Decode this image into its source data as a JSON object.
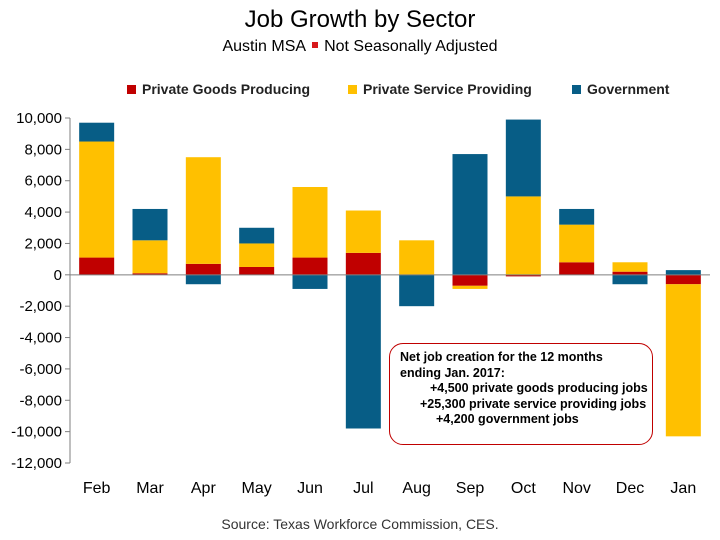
{
  "header": {
    "title": "Job Growth by Sector",
    "subtitle_left": "Austin MSA",
    "subtitle_right": "Not Seasonally Adjusted"
  },
  "annotation": {
    "line1": "Net job creation for the 12 months",
    "line2": "ending Jan. 2017:",
    "line3": "+4,500 private goods producing jobs",
    "line4": "+25,300 private service providing jobs",
    "line5": "+4,200 government jobs"
  },
  "source": "Source: Texas Workforce Commission, CES.",
  "colors": {
    "goods": "#c00000",
    "services": "#ffc000",
    "government": "#075d86"
  },
  "chart_data": {
    "type": "bar",
    "stacked": true,
    "categories": [
      "Feb",
      "Mar",
      "Apr",
      "May",
      "Jun",
      "Jul",
      "Aug",
      "Sep",
      "Oct",
      "Nov",
      "Dec",
      "Jan"
    ],
    "series": [
      {
        "name": "Private Goods Producing",
        "values": [
          1100,
          100,
          700,
          500,
          1100,
          1400,
          0,
          -700,
          -100,
          800,
          200,
          -600
        ]
      },
      {
        "name": "Private Service Providing",
        "values": [
          7400,
          2100,
          6800,
          1500,
          4500,
          2700,
          2200,
          -200,
          5000,
          2400,
          600,
          -9700
        ]
      },
      {
        "name": "Government",
        "values": [
          1200,
          2000,
          -600,
          1000,
          -900,
          -9800,
          -2000,
          7700,
          4900,
          1000,
          -600,
          300
        ]
      }
    ],
    "yticks": [
      "10,000",
      "8,000",
      "6,000",
      "4,000",
      "2,000",
      "0",
      "-2,000",
      "-4,000",
      "-6,000",
      "-8,000",
      "-10,000",
      "-12,000"
    ],
    "ylim": [
      -12000,
      10000
    ],
    "legend_position": "top"
  }
}
